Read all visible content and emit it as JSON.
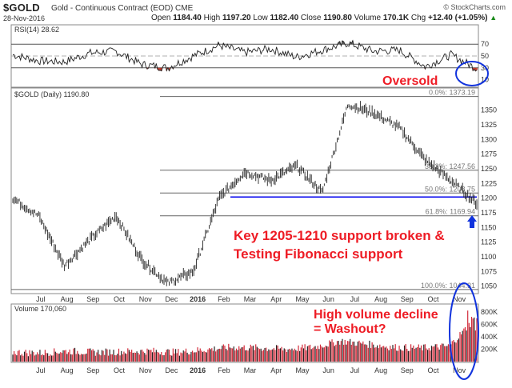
{
  "header": {
    "symbol": "$GOLD",
    "name": "Gold - Continuous Contract (EOD) CME",
    "date": "28-Nov-2016",
    "brand": "© StockCharts.com",
    "open_label": "Open",
    "open": "1184.40",
    "high_label": "High",
    "high": "1197.20",
    "low_label": "Low",
    "low": "1182.40",
    "close_label": "Close",
    "close": "1190.80",
    "volume_label": "Volume",
    "volume": "170.1K",
    "chg_label": "Chg",
    "chg": "+12.40 (+1.05%)",
    "chg_arrow": "▲"
  },
  "colors": {
    "fib_line": "#666666",
    "support_line": "#0000ee",
    "annotation": "#ee1c25",
    "circle": "#1133dd",
    "vol_up": "#222222",
    "vol_down": "#d22b3a",
    "rsi_oversold_fill": "#c0392b",
    "rsi_overbought_fill": "#555555"
  },
  "chart_data": [
    {
      "type": "line",
      "label": "RSI(14) 28.62",
      "ylim": [
        0,
        100
      ],
      "yticks": [
        "70",
        "50",
        "30",
        "10"
      ],
      "ref_lines": [
        70,
        30
      ],
      "x": [
        "Jun-2015",
        "Jul-2015",
        "Aug-2015",
        "Sep-2015",
        "Oct-2015",
        "Nov-2015",
        "Dec-2015",
        "Jan-2016",
        "Feb-2016",
        "Mar-2016",
        "Apr-2016",
        "May-2016",
        "Jun-2016",
        "Jul-2016",
        "Aug-2016",
        "Sep-2016",
        "Oct-2016",
        "Nov-2016",
        "28-Nov-2016"
      ],
      "values": [
        52,
        42,
        40,
        55,
        58,
        36,
        30,
        50,
        68,
        56,
        62,
        48,
        60,
        72,
        58,
        60,
        32,
        52,
        28.62
      ]
    },
    {
      "type": "line",
      "label": "$GOLD (Daily) 1190.80",
      "ylim": [
        1040,
        1385
      ],
      "yticks": [
        "1350",
        "1325",
        "1300",
        "1275",
        "1250",
        "1225",
        "1200",
        "1175",
        "1150",
        "1125",
        "1100",
        "1075",
        "1050"
      ],
      "xticks": [
        "Jul",
        "Aug",
        "Sep",
        "Oct",
        "Nov",
        "Dec",
        "2016",
        "Feb",
        "Mar",
        "Apr",
        "May",
        "Jun",
        "Jul",
        "Aug",
        "Sep",
        "Oct",
        "Nov"
      ],
      "x": [
        "Jun-2015",
        "Jul-2015",
        "Aug-2015",
        "Sep-2015",
        "Oct-2015",
        "Nov-2015",
        "Dec-2015",
        "Jan-2016",
        "Feb-2016",
        "Mar-2016",
        "Apr-2016",
        "May-2016",
        "Jun-2016",
        "Jul-2016",
        "Aug-2016",
        "Sep-2016",
        "Oct-2016",
        "Nov-2016",
        "28-Nov-2016"
      ],
      "values": [
        1200,
        1170,
        1085,
        1130,
        1170,
        1095,
        1055,
        1075,
        1200,
        1245,
        1230,
        1255,
        1210,
        1360,
        1345,
        1320,
        1265,
        1230,
        1190.8
      ],
      "fibonacci": [
        {
          "label": "0.0%: 1373.19",
          "value": 1373.19
        },
        {
          "label": "38.2%: 1247.56",
          "value": 1247.56
        },
        {
          "label": "50.0%: 1208.75",
          "value": 1208.75
        },
        {
          "label": "61.8%: 1169.94",
          "value": 1169.94
        },
        {
          "label": "100.0%: 1044.31",
          "value": 1044.31
        }
      ],
      "support_level": 1202,
      "annotations": [
        "Oversold",
        "Key 1205-1210 support broken &",
        "Testing Fibonacci support",
        "High volume decline",
        "= Washout?"
      ]
    },
    {
      "type": "bar",
      "label": "Volume 170,060",
      "ylim": [
        0,
        900000
      ],
      "yticks": [
        "800K",
        "600K",
        "400K",
        "200K"
      ],
      "xticks": [
        "Jul",
        "Aug",
        "Sep",
        "Oct",
        "Nov",
        "Dec",
        "2016",
        "Feb",
        "Mar",
        "Apr",
        "May",
        "Jun",
        "Jul",
        "Aug",
        "Sep",
        "Oct",
        "Nov"
      ],
      "x": [
        "Jun-2015",
        "Jul-2015",
        "Aug-2015",
        "Sep-2015",
        "Oct-2015",
        "Nov-2015",
        "Dec-2015",
        "Jan-2016",
        "Feb-2016",
        "Mar-2016",
        "Apr-2016",
        "May-2016",
        "Jun-2016",
        "Jul-2016",
        "Aug-2016",
        "Sep-2016",
        "Oct-2016",
        "Nov-2016"
      ],
      "values": [
        150000,
        140000,
        170000,
        150000,
        160000,
        170000,
        150000,
        190000,
        230000,
        220000,
        200000,
        230000,
        330000,
        280000,
        230000,
        220000,
        250000,
        720000
      ]
    }
  ]
}
